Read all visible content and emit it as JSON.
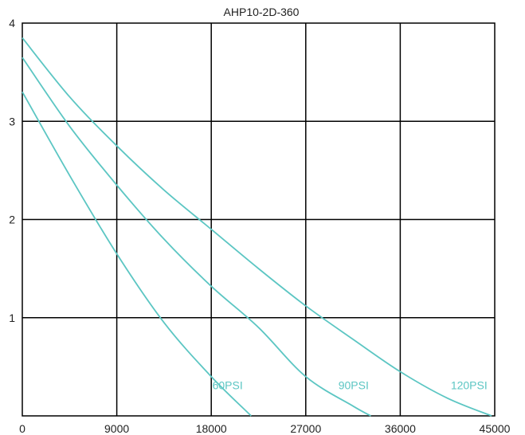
{
  "chart_data": {
    "type": "line",
    "title": "AHP10-2D-360",
    "xlabel": "",
    "ylabel": "",
    "xlim": [
      0,
      45000
    ],
    "ylim": [
      0,
      4
    ],
    "xticks": [
      0,
      9000,
      18000,
      27000,
      36000,
      45000
    ],
    "xtick_labels": [
      "0",
      "9000",
      "18000",
      "27000",
      "36000",
      "45000"
    ],
    "yticks": [
      1,
      2,
      3,
      4
    ],
    "ytick_labels": [
      "1",
      "2",
      "3",
      "4"
    ],
    "grid": true,
    "line_color": "#5cc6c3",
    "series": [
      {
        "name": "60PSI",
        "x": [
          0,
          4500,
          9000,
          13500,
          18000,
          21800
        ],
        "y": [
          3.3,
          2.45,
          1.65,
          0.95,
          0.4,
          0.0
        ]
      },
      {
        "name": "90PSI",
        "x": [
          0,
          4500,
          9000,
          13500,
          18000,
          22500,
          27000,
          31500,
          33200
        ],
        "y": [
          3.65,
          2.95,
          2.35,
          1.8,
          1.32,
          0.9,
          0.4,
          0.1,
          0.0
        ]
      },
      {
        "name": "120PSI",
        "x": [
          0,
          4500,
          9000,
          13500,
          18000,
          22500,
          27000,
          31500,
          36000,
          40500,
          44700
        ],
        "y": [
          3.85,
          3.25,
          2.75,
          2.3,
          1.9,
          1.5,
          1.12,
          0.78,
          0.45,
          0.18,
          0.0
        ]
      }
    ]
  }
}
